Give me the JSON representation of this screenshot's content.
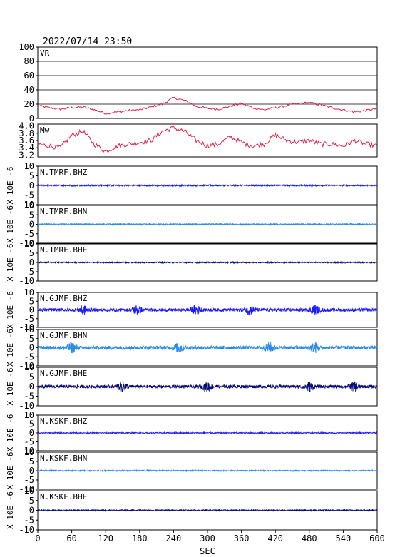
{
  "header": {
    "datetime": "2022/07/14 23:50"
  },
  "colors": {
    "vr": "#e0204a",
    "mw": "#e0204a",
    "bhz": "#1a1aff",
    "bhn": "#2a8ae8",
    "bhe": "#0a0a78",
    "frame": "#000000"
  },
  "chart_data": [
    {
      "type": "line",
      "label": "VR",
      "ylim": [
        0,
        100
      ],
      "yticks": [
        "0",
        "20",
        "40",
        "60",
        "80",
        "100"
      ],
      "grid": true,
      "x": [
        0,
        20,
        40,
        60,
        80,
        100,
        120,
        140,
        160,
        180,
        200,
        220,
        240,
        260,
        280,
        300,
        320,
        340,
        360,
        380,
        400,
        420,
        440,
        460,
        480,
        500,
        520,
        540,
        560,
        580,
        600
      ],
      "values": [
        18,
        15,
        13,
        15,
        16,
        12,
        7,
        9,
        11,
        12,
        16,
        20,
        29,
        25,
        17,
        14,
        13,
        17,
        21,
        15,
        12,
        15,
        18,
        21,
        22,
        19,
        15,
        12,
        9,
        11,
        14
      ]
    },
    {
      "type": "line",
      "label": "Mw",
      "ylim": [
        3.15,
        4.05
      ],
      "yticks": [
        "3.2",
        "3.4",
        "3.6",
        "3.8",
        "4.0"
      ],
      "grid": false,
      "x": [
        0,
        20,
        40,
        60,
        80,
        100,
        120,
        140,
        160,
        180,
        200,
        220,
        240,
        260,
        280,
        300,
        320,
        340,
        360,
        380,
        400,
        420,
        440,
        460,
        480,
        500,
        520,
        540,
        560,
        580,
        600
      ],
      "values": [
        3.5,
        3.45,
        3.4,
        3.75,
        3.85,
        3.5,
        3.3,
        3.45,
        3.5,
        3.55,
        3.6,
        3.85,
        3.95,
        3.85,
        3.6,
        3.45,
        3.5,
        3.7,
        3.55,
        3.45,
        3.5,
        3.75,
        3.6,
        3.55,
        3.6,
        3.5,
        3.5,
        3.45,
        3.6,
        3.5,
        3.45
      ]
    },
    {
      "type": "line",
      "label": "N.TMRF.BHZ",
      "ylim": [
        -10,
        10
      ],
      "yticks": [
        "-10",
        "-5",
        "0",
        "5",
        "10"
      ],
      "color_key": "bhz",
      "noise_amplitude": 0.35,
      "bursts": []
    },
    {
      "type": "line",
      "label": "N.TMRF.BHN",
      "ylim": [
        -10,
        10
      ],
      "yticks": [
        "-10",
        "-5",
        "0",
        "5",
        "10"
      ],
      "color_key": "bhn",
      "noise_amplitude": 0.35,
      "bursts": []
    },
    {
      "type": "line",
      "label": "N.TMRF.BHE",
      "ylim": [
        -10,
        10
      ],
      "yticks": [
        "-10",
        "-5",
        "0",
        "5",
        "10"
      ],
      "color_key": "bhe",
      "noise_amplitude": 0.3,
      "bursts": []
    },
    {
      "type": "line",
      "label": "N.GJMF.BHZ",
      "ylim": [
        -10,
        10
      ],
      "yticks": [
        "-10",
        "-5",
        "0",
        "5",
        "10"
      ],
      "color_key": "bhz",
      "noise_amplitude": 0.9,
      "bursts": [
        80,
        175,
        280,
        375,
        490
      ]
    },
    {
      "type": "line",
      "label": "N.GJMF.BHN",
      "ylim": [
        -10,
        10
      ],
      "yticks": [
        "-10",
        "-5",
        "0",
        "5",
        "10"
      ],
      "color_key": "bhn",
      "noise_amplitude": 1.0,
      "bursts": [
        60,
        250,
        410,
        490
      ]
    },
    {
      "type": "line",
      "label": "N.GJMF.BHE",
      "ylim": [
        -10,
        10
      ],
      "yticks": [
        "-10",
        "-5",
        "0",
        "5",
        "10"
      ],
      "color_key": "bhe",
      "noise_amplitude": 0.8,
      "bursts": [
        150,
        300,
        480,
        560
      ]
    },
    {
      "type": "line",
      "label": "N.KSKF.BHZ",
      "ylim": [
        -10,
        10
      ],
      "yticks": [
        "-10",
        "-5",
        "0",
        "5",
        "10"
      ],
      "color_key": "bhz",
      "noise_amplitude": 0.3,
      "bursts": []
    },
    {
      "type": "line",
      "label": "N.KSKF.BHN",
      "ylim": [
        -10,
        10
      ],
      "yticks": [
        "-10",
        "-5",
        "0",
        "5",
        "10"
      ],
      "color_key": "bhn",
      "noise_amplitude": 0.3,
      "bursts": []
    },
    {
      "type": "line",
      "label": "N.KSKF.BHE",
      "ylim": [
        -10,
        10
      ],
      "yticks": [
        "-10",
        "-5",
        "0",
        "5",
        "10"
      ],
      "color_key": "bhe",
      "noise_amplitude": 0.3,
      "bursts": []
    }
  ],
  "x_axis": {
    "xlim": [
      0,
      600
    ],
    "ticks": [
      "0",
      "60",
      "120",
      "180",
      "240",
      "300",
      "360",
      "420",
      "480",
      "540",
      "600"
    ],
    "label": "SEC"
  },
  "y_unit_label": "X 10E -6"
}
